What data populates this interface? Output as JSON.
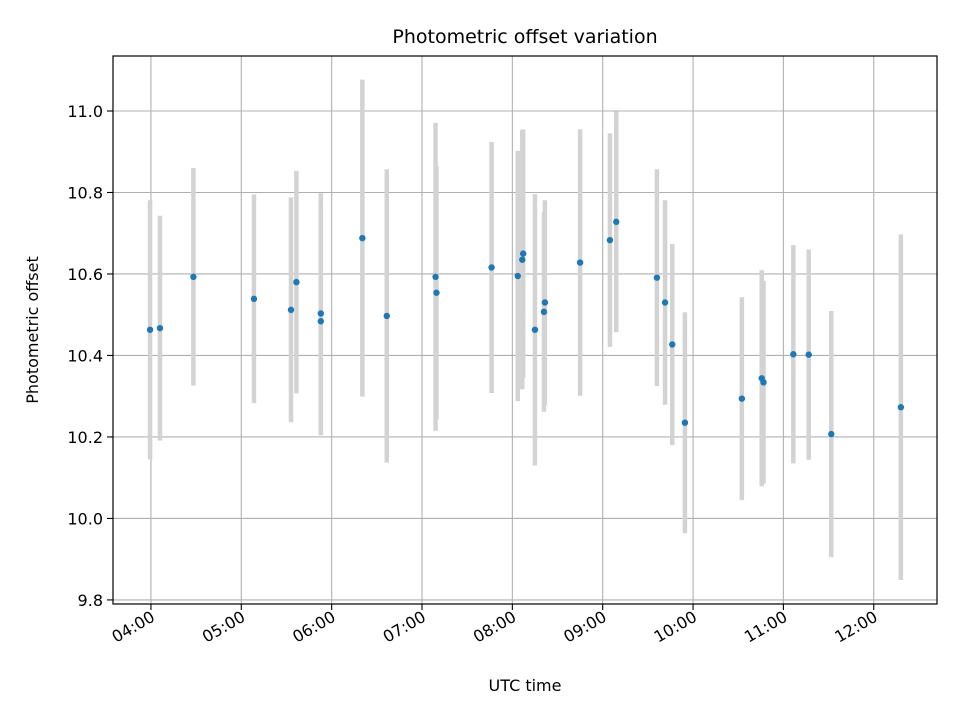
{
  "chart_data": {
    "type": "scatter",
    "title": "Photometric offset variation",
    "xlabel": "UTC time",
    "ylabel": "Photometric offset",
    "grid": true,
    "x_unit": "hours (UTC, decimal)",
    "xlim": [
      3.58,
      12.7
    ],
    "ylim": [
      9.79,
      11.135
    ],
    "x_ticks": [
      4,
      5,
      6,
      7,
      8,
      9,
      10,
      11,
      12
    ],
    "x_tick_labels": [
      "04:00",
      "05:00",
      "06:00",
      "07:00",
      "08:00",
      "09:00",
      "10:00",
      "11:00",
      "12:00"
    ],
    "y_ticks": [
      9.8,
      10.0,
      10.2,
      10.4,
      10.6,
      10.8,
      11.0
    ],
    "y_tick_labels": [
      "9.8",
      "10.0",
      "10.2",
      "10.4",
      "10.6",
      "10.8",
      "11.0"
    ],
    "marker_color": "#1f77b4",
    "errorbar_color": "#d3d3d3",
    "points": [
      {
        "x": 3.99,
        "y": 10.463,
        "err": 0.318
      },
      {
        "x": 4.1,
        "y": 10.467,
        "err": 0.276
      },
      {
        "x": 4.47,
        "y": 10.593,
        "err": 0.267
      },
      {
        "x": 5.14,
        "y": 10.539,
        "err": 0.256
      },
      {
        "x": 5.55,
        "y": 10.512,
        "err": 0.276
      },
      {
        "x": 5.61,
        "y": 10.58,
        "err": 0.273
      },
      {
        "x": 5.88,
        "y": 10.503,
        "err": 0.295
      },
      {
        "x": 5.88,
        "y": 10.484,
        "err": 0.28
      },
      {
        "x": 6.34,
        "y": 10.688,
        "err": 0.389
      },
      {
        "x": 6.61,
        "y": 10.497,
        "err": 0.36
      },
      {
        "x": 7.15,
        "y": 10.593,
        "err": 0.378
      },
      {
        "x": 7.16,
        "y": 10.554,
        "err": 0.311
      },
      {
        "x": 7.77,
        "y": 10.616,
        "err": 0.308
      },
      {
        "x": 8.06,
        "y": 10.595,
        "err": 0.307
      },
      {
        "x": 8.11,
        "y": 10.635,
        "err": 0.318
      },
      {
        "x": 8.12,
        "y": 10.65,
        "err": 0.305
      },
      {
        "x": 8.25,
        "y": 10.463,
        "err": 0.333
      },
      {
        "x": 8.35,
        "y": 10.507,
        "err": 0.245
      },
      {
        "x": 8.36,
        "y": 10.53,
        "err": 0.251
      },
      {
        "x": 8.75,
        "y": 10.628,
        "err": 0.327
      },
      {
        "x": 9.08,
        "y": 10.683,
        "err": 0.262
      },
      {
        "x": 9.15,
        "y": 10.728,
        "err": 0.271
      },
      {
        "x": 9.6,
        "y": 10.591,
        "err": 0.266
      },
      {
        "x": 9.69,
        "y": 10.53,
        "err": 0.251
      },
      {
        "x": 9.77,
        "y": 10.427,
        "err": 0.247
      },
      {
        "x": 9.91,
        "y": 10.235,
        "err": 0.271
      },
      {
        "x": 10.54,
        "y": 10.294,
        "err": 0.249
      },
      {
        "x": 10.76,
        "y": 10.344,
        "err": 0.265
      },
      {
        "x": 10.78,
        "y": 10.334,
        "err": 0.249
      },
      {
        "x": 11.11,
        "y": 10.403,
        "err": 0.268
      },
      {
        "x": 11.28,
        "y": 10.402,
        "err": 0.258
      },
      {
        "x": 11.53,
        "y": 10.207,
        "err": 0.302
      },
      {
        "x": 12.3,
        "y": 10.273,
        "err": 0.424
      }
    ]
  }
}
